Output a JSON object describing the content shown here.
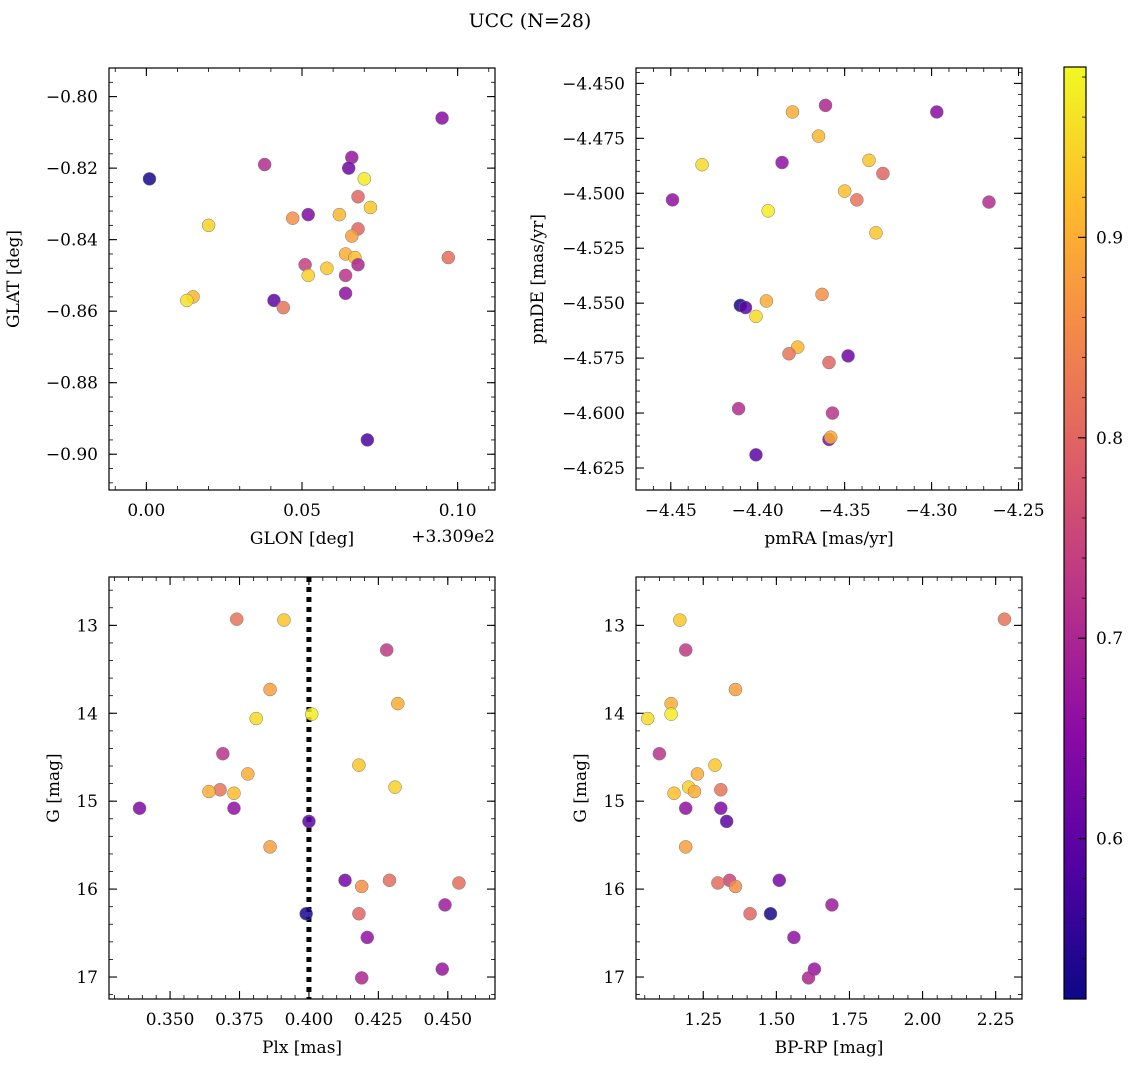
{
  "figure": {
    "title": "UCC (N=28)"
  },
  "colorbar": {
    "min": 0.52,
    "max": 0.985,
    "ticks": [
      {
        "value": 0.6,
        "label": "0.6"
      },
      {
        "value": 0.7,
        "label": "0.7"
      },
      {
        "value": 0.8,
        "label": "0.8"
      },
      {
        "value": 0.9,
        "label": "0.9"
      }
    ],
    "colormap": [
      "#0d0887",
      "#5302a3",
      "#8b0aa5",
      "#b83289",
      "#db5c68",
      "#f48849",
      "#febc2a",
      "#f0f921"
    ]
  },
  "chart_data": [
    {
      "type": "scatter",
      "id": "glon-glat",
      "xlabel": "GLON [deg]",
      "ylabel": "GLAT [deg]",
      "offset_label": "+3.309e2",
      "xlim": [
        -0.012,
        0.112
      ],
      "ylim": [
        -0.91,
        -0.792
      ],
      "xticks": [
        {
          "v": 0.0,
          "l": "0.00"
        },
        {
          "v": 0.05,
          "l": "0.05"
        },
        {
          "v": 0.1,
          "l": "0.10"
        }
      ],
      "yticks": [
        {
          "v": -0.8,
          "l": "−0.80"
        },
        {
          "v": -0.82,
          "l": "−0.82"
        },
        {
          "v": -0.84,
          "l": "−0.84"
        },
        {
          "v": -0.86,
          "l": "−0.86"
        },
        {
          "v": -0.88,
          "l": "−0.88"
        },
        {
          "v": -0.9,
          "l": "−0.90"
        }
      ],
      "points": [
        {
          "x": 0.001,
          "y": -0.823,
          "c": 0.53
        },
        {
          "x": 0.038,
          "y": -0.819,
          "c": 0.71
        },
        {
          "x": 0.095,
          "y": -0.806,
          "c": 0.65
        },
        {
          "x": 0.066,
          "y": -0.817,
          "c": 0.67
        },
        {
          "x": 0.065,
          "y": -0.82,
          "c": 0.62
        },
        {
          "x": 0.07,
          "y": -0.823,
          "c": 0.97
        },
        {
          "x": 0.068,
          "y": -0.828,
          "c": 0.8
        },
        {
          "x": 0.072,
          "y": -0.831,
          "c": 0.93
        },
        {
          "x": 0.052,
          "y": -0.833,
          "c": 0.64
        },
        {
          "x": 0.062,
          "y": -0.833,
          "c": 0.91
        },
        {
          "x": 0.047,
          "y": -0.834,
          "c": 0.86
        },
        {
          "x": 0.02,
          "y": -0.836,
          "c": 0.94
        },
        {
          "x": 0.068,
          "y": -0.837,
          "c": 0.8
        },
        {
          "x": 0.066,
          "y": -0.839,
          "c": 0.88
        },
        {
          "x": 0.064,
          "y": -0.844,
          "c": 0.9
        },
        {
          "x": 0.067,
          "y": -0.845,
          "c": 0.92
        },
        {
          "x": 0.097,
          "y": -0.845,
          "c": 0.81
        },
        {
          "x": 0.051,
          "y": -0.847,
          "c": 0.74
        },
        {
          "x": 0.068,
          "y": -0.847,
          "c": 0.7
        },
        {
          "x": 0.058,
          "y": -0.848,
          "c": 0.93
        },
        {
          "x": 0.052,
          "y": -0.85,
          "c": 0.94
        },
        {
          "x": 0.064,
          "y": -0.85,
          "c": 0.72
        },
        {
          "x": 0.064,
          "y": -0.855,
          "c": 0.66
        },
        {
          "x": 0.015,
          "y": -0.856,
          "c": 0.91
        },
        {
          "x": 0.013,
          "y": -0.857,
          "c": 0.96
        },
        {
          "x": 0.041,
          "y": -0.857,
          "c": 0.6
        },
        {
          "x": 0.044,
          "y": -0.859,
          "c": 0.82
        },
        {
          "x": 0.071,
          "y": -0.896,
          "c": 0.58
        }
      ]
    },
    {
      "type": "scatter",
      "id": "pmra-pmde",
      "xlabel": "pmRA [mas/yr]",
      "ylabel": "pmDE [mas/yr]",
      "xlim": [
        -4.47,
        -4.248
      ],
      "ylim": [
        -4.635,
        -4.443
      ],
      "xticks": [
        {
          "v": -4.45,
          "l": "−4.45"
        },
        {
          "v": -4.4,
          "l": "−4.40"
        },
        {
          "v": -4.35,
          "l": "−4.35"
        },
        {
          "v": -4.3,
          "l": "−4.30"
        },
        {
          "v": -4.25,
          "l": "−4.25"
        }
      ],
      "yticks": [
        {
          "v": -4.45,
          "l": "−4.450"
        },
        {
          "v": -4.475,
          "l": "−4.475"
        },
        {
          "v": -4.5,
          "l": "−4.500"
        },
        {
          "v": -4.525,
          "l": "−4.525"
        },
        {
          "v": -4.55,
          "l": "−4.550"
        },
        {
          "v": -4.575,
          "l": "−4.575"
        },
        {
          "v": -4.6,
          "l": "−4.600"
        },
        {
          "v": -4.625,
          "l": "−4.625"
        }
      ],
      "points": [
        {
          "x": -4.361,
          "y": -4.46,
          "c": 0.7
        },
        {
          "x": -4.38,
          "y": -4.463,
          "c": 0.9
        },
        {
          "x": -4.297,
          "y": -4.463,
          "c": 0.65
        },
        {
          "x": -4.365,
          "y": -4.474,
          "c": 0.91
        },
        {
          "x": -4.336,
          "y": -4.485,
          "c": 0.93
        },
        {
          "x": -4.386,
          "y": -4.486,
          "c": 0.66
        },
        {
          "x": -4.432,
          "y": -4.487,
          "c": 0.95
        },
        {
          "x": -4.328,
          "y": -4.491,
          "c": 0.8
        },
        {
          "x": -4.35,
          "y": -4.499,
          "c": 0.92
        },
        {
          "x": -4.343,
          "y": -4.503,
          "c": 0.82
        },
        {
          "x": -4.449,
          "y": -4.503,
          "c": 0.66
        },
        {
          "x": -4.267,
          "y": -4.504,
          "c": 0.71
        },
        {
          "x": -4.394,
          "y": -4.508,
          "c": 0.97
        },
        {
          "x": -4.332,
          "y": -4.518,
          "c": 0.93
        },
        {
          "x": -4.363,
          "y": -4.546,
          "c": 0.86
        },
        {
          "x": -4.395,
          "y": -4.549,
          "c": 0.9
        },
        {
          "x": -4.41,
          "y": -4.551,
          "c": 0.53
        },
        {
          "x": -4.407,
          "y": -4.552,
          "c": 0.6
        },
        {
          "x": -4.401,
          "y": -4.556,
          "c": 0.95
        },
        {
          "x": -4.377,
          "y": -4.57,
          "c": 0.91
        },
        {
          "x": -4.382,
          "y": -4.573,
          "c": 0.82
        },
        {
          "x": -4.348,
          "y": -4.574,
          "c": 0.62
        },
        {
          "x": -4.359,
          "y": -4.577,
          "c": 0.8
        },
        {
          "x": -4.411,
          "y": -4.598,
          "c": 0.71
        },
        {
          "x": -4.357,
          "y": -4.6,
          "c": 0.72
        },
        {
          "x": -4.359,
          "y": -4.612,
          "c": 0.64
        },
        {
          "x": -4.358,
          "y": -4.611,
          "c": 0.9
        },
        {
          "x": -4.401,
          "y": -4.619,
          "c": 0.6
        }
      ]
    },
    {
      "type": "scatter",
      "id": "plx-g",
      "xlabel": "Plx [mas]",
      "ylabel": "G [mag]",
      "xlim": [
        0.328,
        0.467
      ],
      "ylim": [
        17.25,
        12.45
      ],
      "vline": 0.4,
      "xticks": [
        {
          "v": 0.35,
          "l": "0.350"
        },
        {
          "v": 0.375,
          "l": "0.375"
        },
        {
          "v": 0.4,
          "l": "0.400"
        },
        {
          "v": 0.425,
          "l": "0.425"
        },
        {
          "v": 0.45,
          "l": "0.450"
        }
      ],
      "yticks": [
        {
          "v": 13,
          "l": "13"
        },
        {
          "v": 14,
          "l": "14"
        },
        {
          "v": 15,
          "l": "15"
        },
        {
          "v": 16,
          "l": "16"
        },
        {
          "v": 17,
          "l": "17"
        }
      ],
      "points": [
        {
          "x": 0.374,
          "y": 12.93,
          "c": 0.82
        },
        {
          "x": 0.391,
          "y": 12.94,
          "c": 0.93
        },
        {
          "x": 0.428,
          "y": 13.28,
          "c": 0.73
        },
        {
          "x": 0.386,
          "y": 13.73,
          "c": 0.88
        },
        {
          "x": 0.432,
          "y": 13.89,
          "c": 0.9
        },
        {
          "x": 0.401,
          "y": 14.01,
          "c": 0.97
        },
        {
          "x": 0.381,
          "y": 14.06,
          "c": 0.95
        },
        {
          "x": 0.369,
          "y": 14.46,
          "c": 0.72
        },
        {
          "x": 0.418,
          "y": 14.59,
          "c": 0.93
        },
        {
          "x": 0.378,
          "y": 14.69,
          "c": 0.9
        },
        {
          "x": 0.431,
          "y": 14.84,
          "c": 0.94
        },
        {
          "x": 0.368,
          "y": 14.87,
          "c": 0.82
        },
        {
          "x": 0.364,
          "y": 14.89,
          "c": 0.9
        },
        {
          "x": 0.373,
          "y": 14.91,
          "c": 0.92
        },
        {
          "x": 0.339,
          "y": 15.08,
          "c": 0.64
        },
        {
          "x": 0.373,
          "y": 15.08,
          "c": 0.66
        },
        {
          "x": 0.4,
          "y": 15.23,
          "c": 0.6
        },
        {
          "x": 0.386,
          "y": 15.52,
          "c": 0.88
        },
        {
          "x": 0.413,
          "y": 15.9,
          "c": 0.63
        },
        {
          "x": 0.429,
          "y": 15.9,
          "c": 0.81
        },
        {
          "x": 0.454,
          "y": 15.93,
          "c": 0.81
        },
        {
          "x": 0.419,
          "y": 15.97,
          "c": 0.86
        },
        {
          "x": 0.449,
          "y": 16.18,
          "c": 0.68
        },
        {
          "x": 0.399,
          "y": 16.28,
          "c": 0.53
        },
        {
          "x": 0.418,
          "y": 16.28,
          "c": 0.8
        },
        {
          "x": 0.421,
          "y": 16.55,
          "c": 0.66
        },
        {
          "x": 0.448,
          "y": 16.91,
          "c": 0.67
        },
        {
          "x": 0.419,
          "y": 17.01,
          "c": 0.7
        }
      ]
    },
    {
      "type": "scatter",
      "id": "bprp-g",
      "xlabel": "BP-RP [mag]",
      "ylabel": "G [mag]",
      "xlim": [
        1.02,
        2.34
      ],
      "ylim": [
        17.25,
        12.45
      ],
      "xticks": [
        {
          "v": 1.25,
          "l": "1.25"
        },
        {
          "v": 1.5,
          "l": "1.50"
        },
        {
          "v": 1.75,
          "l": "1.75"
        },
        {
          "v": 2.0,
          "l": "2.00"
        },
        {
          "v": 2.25,
          "l": "2.25"
        }
      ],
      "yticks": [
        {
          "v": 13,
          "l": "13"
        },
        {
          "v": 14,
          "l": "14"
        },
        {
          "v": 15,
          "l": "15"
        },
        {
          "v": 16,
          "l": "16"
        },
        {
          "v": 17,
          "l": "17"
        }
      ],
      "points": [
        {
          "x": 1.17,
          "y": 12.94,
          "c": 0.93
        },
        {
          "x": 2.28,
          "y": 12.93,
          "c": 0.82
        },
        {
          "x": 1.19,
          "y": 13.28,
          "c": 0.73
        },
        {
          "x": 1.36,
          "y": 13.73,
          "c": 0.88
        },
        {
          "x": 1.14,
          "y": 13.89,
          "c": 0.9
        },
        {
          "x": 1.14,
          "y": 14.01,
          "c": 0.97
        },
        {
          "x": 1.06,
          "y": 14.06,
          "c": 0.95
        },
        {
          "x": 1.1,
          "y": 14.46,
          "c": 0.72
        },
        {
          "x": 1.29,
          "y": 14.59,
          "c": 0.93
        },
        {
          "x": 1.23,
          "y": 14.69,
          "c": 0.9
        },
        {
          "x": 1.2,
          "y": 14.84,
          "c": 0.94
        },
        {
          "x": 1.31,
          "y": 14.87,
          "c": 0.82
        },
        {
          "x": 1.22,
          "y": 14.89,
          "c": 0.9
        },
        {
          "x": 1.15,
          "y": 14.91,
          "c": 0.92
        },
        {
          "x": 1.19,
          "y": 15.08,
          "c": 0.66
        },
        {
          "x": 1.31,
          "y": 15.08,
          "c": 0.64
        },
        {
          "x": 1.33,
          "y": 15.23,
          "c": 0.6
        },
        {
          "x": 1.19,
          "y": 15.52,
          "c": 0.88
        },
        {
          "x": 1.51,
          "y": 15.9,
          "c": 0.63
        },
        {
          "x": 1.34,
          "y": 15.9,
          "c": 0.75
        },
        {
          "x": 1.3,
          "y": 15.93,
          "c": 0.81
        },
        {
          "x": 1.36,
          "y": 15.97,
          "c": 0.86
        },
        {
          "x": 1.69,
          "y": 16.18,
          "c": 0.68
        },
        {
          "x": 1.48,
          "y": 16.28,
          "c": 0.53
        },
        {
          "x": 1.41,
          "y": 16.28,
          "c": 0.8
        },
        {
          "x": 1.56,
          "y": 16.55,
          "c": 0.66
        },
        {
          "x": 1.63,
          "y": 16.91,
          "c": 0.67
        },
        {
          "x": 1.61,
          "y": 17.01,
          "c": 0.7
        }
      ]
    }
  ]
}
